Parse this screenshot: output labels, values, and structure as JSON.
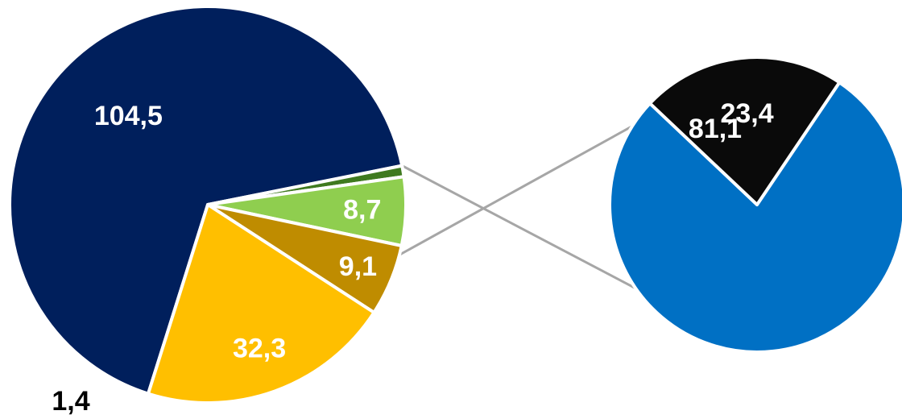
{
  "chart_data": {
    "type": "pie",
    "subtype": "pie-of-pie",
    "main_pie": {
      "slices": [
        {
          "label": "104,5",
          "value": 104.5,
          "color": "#001f5c",
          "label_color": "#ffffff"
        },
        {
          "label": "1,4",
          "value": 1.4,
          "color": "#3f7a1f",
          "label_color": "#000000"
        },
        {
          "label": "8,7",
          "value": 8.7,
          "color": "#8fce4f",
          "label_color": "#ffffff"
        },
        {
          "label": "9,1",
          "value": 9.1,
          "color": "#bf8c00",
          "label_color": "#ffffff"
        },
        {
          "label": "32,3",
          "value": 32.3,
          "color": "#ffbf00",
          "label_color": "#ffffff"
        }
      ]
    },
    "secondary_pie": {
      "breaks_down": "104,5",
      "slices": [
        {
          "label": "81,1",
          "value": 81.1,
          "color": "#0070c4",
          "label_color": "#ffffff"
        },
        {
          "label": "23,4",
          "value": 23.4,
          "color": "#0a0a0a",
          "label_color": "#ffffff"
        }
      ]
    },
    "connector_color": "#a6a6a6",
    "slice_border_color": "#ffffff",
    "legend": "none"
  }
}
